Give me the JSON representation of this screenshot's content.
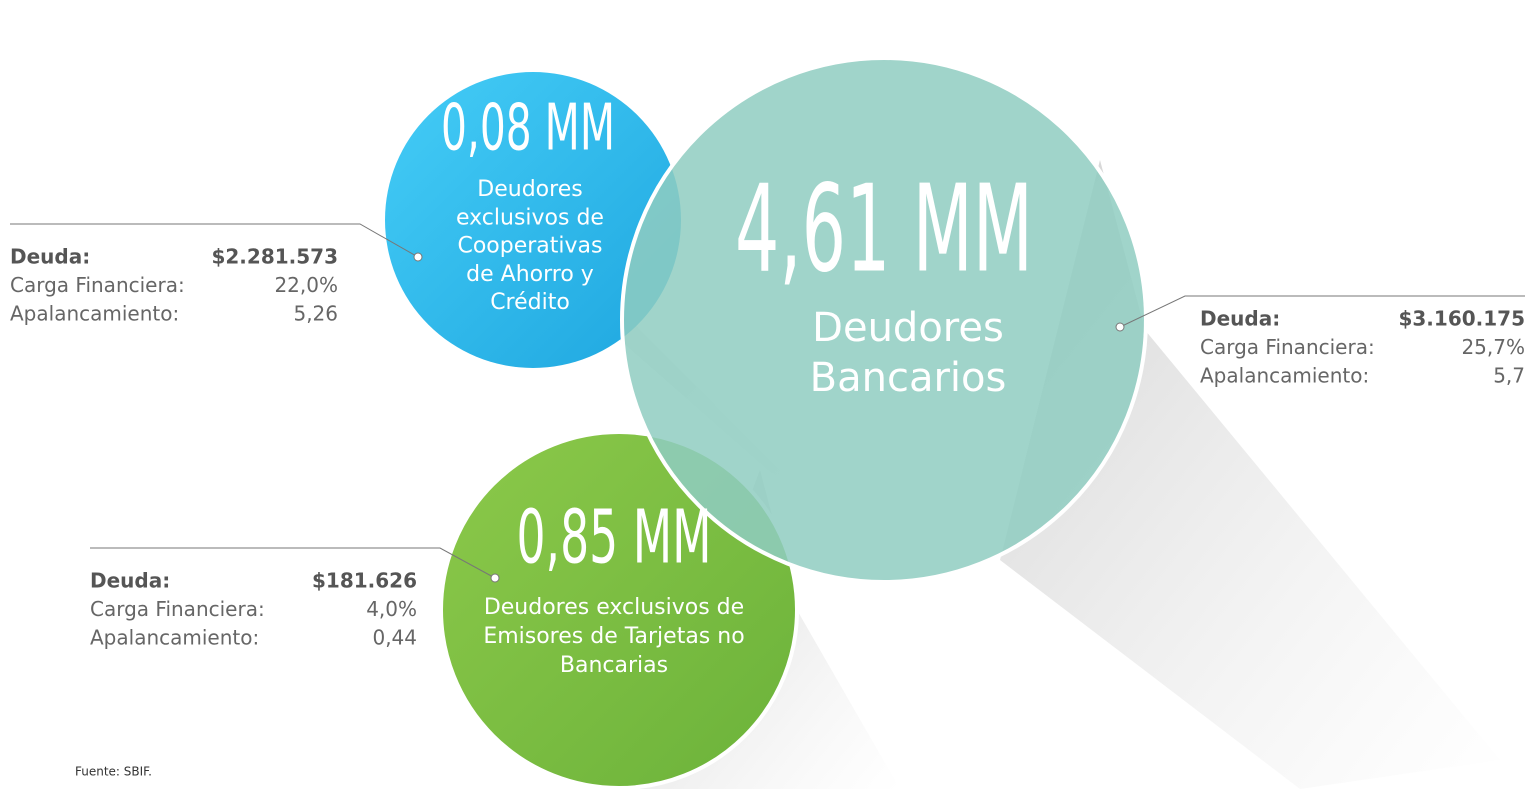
{
  "bubbles": [
    {
      "value": "0,08 MM",
      "label": [
        "Deudores",
        "exclusivos de",
        "Cooperativas",
        "de Ahorro y",
        "Crédito"
      ],
      "details": {
        "deuda_label": "Deuda:",
        "deuda": "$2.281.573",
        "carga_label": "Carga Financiera:",
        "carga": "22,0%",
        "apal_label": "Apalancamiento:",
        "apal": "5,26"
      }
    },
    {
      "value": "4,61 MM",
      "label": [
        "Deudores",
        "Bancarios"
      ],
      "details": {
        "deuda_label": "Deuda:",
        "deuda": "$3.160.175",
        "carga_label": "Carga Financiera:",
        "carga": "25,7%",
        "apal_label": "Apalancamiento:",
        "apal": "5,7"
      }
    },
    {
      "value": "0,85 MM",
      "label": [
        "Deudores exclusivos de",
        "Emisores de Tarjetas no",
        "Bancarias"
      ],
      "details": {
        "deuda_label": "Deuda:",
        "deuda": "$181.626",
        "carga_label": "Carga Financiera:",
        "carga": "4,0%",
        "apal_label": "Apalancamiento:",
        "apal": "0,44"
      }
    }
  ],
  "source": "Fuente: SBIF."
}
